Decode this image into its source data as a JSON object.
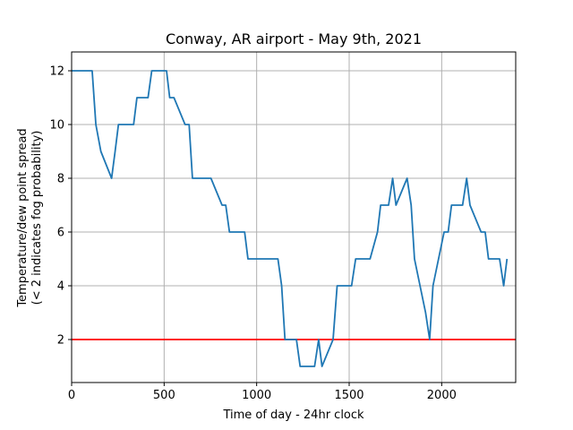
{
  "chart_data": {
    "type": "line",
    "title": "Conway, AR airport - May 9th, 2021",
    "xlabel": "Time of day - 24hr clock",
    "ylabel_line1": "Temperature/dew point spread",
    "ylabel_line2": "(< 2 indicates fog probability)",
    "xlim": [
      0,
      2400
    ],
    "ylim": [
      0.4,
      12.7
    ],
    "xticks": [
      0,
      500,
      1000,
      1500,
      2000
    ],
    "xtick_labels": [
      "0",
      "500",
      "1000",
      "1500",
      "2000"
    ],
    "yticks": [
      2,
      4,
      6,
      8,
      10,
      12
    ],
    "ytick_labels": [
      "2",
      "4",
      "6",
      "8",
      "10",
      "12"
    ],
    "grid": true,
    "threshold": {
      "y": 2,
      "color": "#ff0000"
    },
    "series": [
      {
        "color": "#1f77b4",
        "points": [
          [
            0,
            12
          ],
          [
            53,
            12
          ],
          [
            111,
            12
          ],
          [
            131,
            10
          ],
          [
            158,
            9
          ],
          [
            216,
            8
          ],
          [
            235,
            9
          ],
          [
            253,
            10
          ],
          [
            270,
            10
          ],
          [
            335,
            10
          ],
          [
            353,
            11
          ],
          [
            373,
            11
          ],
          [
            413,
            11
          ],
          [
            433,
            12
          ],
          [
            453,
            12
          ],
          [
            513,
            12
          ],
          [
            530,
            11
          ],
          [
            553,
            11
          ],
          [
            613,
            10
          ],
          [
            635,
            10
          ],
          [
            653,
            8
          ],
          [
            670,
            8
          ],
          [
            753,
            8
          ],
          [
            813,
            7
          ],
          [
            833,
            7
          ],
          [
            853,
            6
          ],
          [
            870,
            6
          ],
          [
            935,
            6
          ],
          [
            953,
            5
          ],
          [
            1035,
            5
          ],
          [
            1115,
            5
          ],
          [
            1135,
            4
          ],
          [
            1153,
            2
          ],
          [
            1215,
            2
          ],
          [
            1235,
            1
          ],
          [
            1253,
            1
          ],
          [
            1313,
            1
          ],
          [
            1335,
            2
          ],
          [
            1353,
            1
          ],
          [
            1353,
            1
          ],
          [
            1353,
            1
          ],
          [
            1413,
            2
          ],
          [
            1435,
            4
          ],
          [
            1453,
            4
          ],
          [
            1513,
            4
          ],
          [
            1535,
            5
          ],
          [
            1553,
            5
          ],
          [
            1613,
            5
          ],
          [
            1653,
            6
          ],
          [
            1670,
            7
          ],
          [
            1713,
            7
          ],
          [
            1735,
            8
          ],
          [
            1753,
            7
          ],
          [
            1813,
            8
          ],
          [
            1835,
            7
          ],
          [
            1853,
            5
          ],
          [
            1913,
            3
          ],
          [
            1935,
            2
          ],
          [
            1953,
            4
          ],
          [
            2013,
            6
          ],
          [
            2035,
            6
          ],
          [
            2053,
            7
          ],
          [
            2113,
            7
          ],
          [
            2135,
            8
          ],
          [
            2153,
            7
          ],
          [
            2213,
            6
          ],
          [
            2235,
            6
          ],
          [
            2253,
            5
          ],
          [
            2313,
            5
          ],
          [
            2335,
            4
          ],
          [
            2353,
            5
          ]
        ]
      }
    ]
  }
}
